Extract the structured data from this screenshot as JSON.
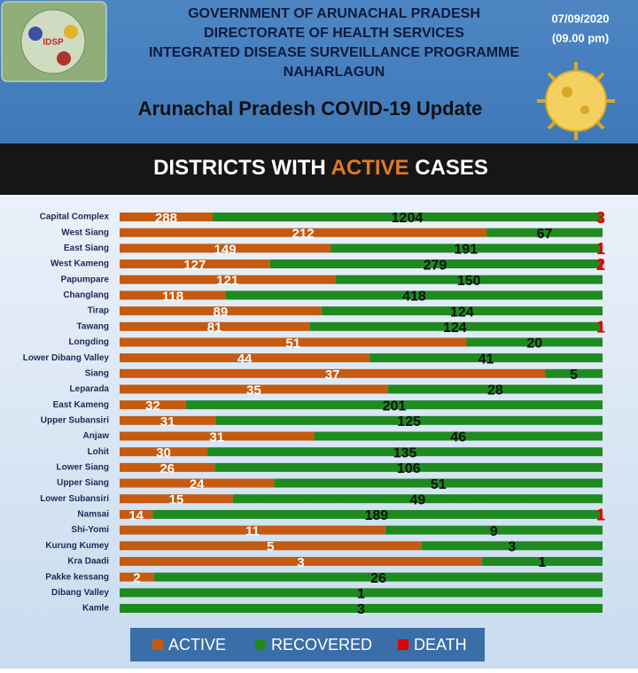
{
  "header": {
    "logo_text": "IDSP",
    "lines": [
      "GOVERNMENT OF ARUNACHAL PRADESH",
      "DIRECTORATE OF HEALTH SERVICES",
      "INTEGRATED DISEASE  SURVEILLANCE PROGRAMME",
      "NAHARLAGUN"
    ],
    "date": "07/09/2020",
    "time": "(09.00 pm)",
    "title": "Arunachal Pradesh COVID-19 Update"
  },
  "banner": {
    "parts": [
      "DISTRICTS WITH",
      "ACTIVE",
      "CASES"
    ]
  },
  "chart_data": {
    "type": "bar",
    "orientation": "horizontal",
    "stacked": true,
    "percent": true,
    "legend": "bottom",
    "categories": [
      "Capital Complex",
      "West Siang",
      "East Siang",
      "West Kameng",
      "Papumpare",
      "Changlang",
      "Tirap",
      "Tawang",
      "Longding",
      "Lower Dibang Valley",
      "Siang",
      "Leparada",
      "East Kameng",
      "Upper Subansiri",
      "Anjaw",
      "Lohit",
      "Lower Siang",
      "Upper Siang",
      "Lower Subansiri",
      "Namsai",
      "Shi-Yomi",
      "Kurung Kumey",
      "Kra Daadi",
      "Pakke kessang",
      "Dibang Valley",
      "Kamle"
    ],
    "series": [
      {
        "name": "ACTIVE",
        "color": "#c55a11",
        "values": [
          288,
          212,
          149,
          127,
          121,
          118,
          89,
          81,
          51,
          44,
          37,
          35,
          32,
          31,
          31,
          30,
          26,
          24,
          15,
          14,
          11,
          5,
          3,
          2,
          null,
          null
        ]
      },
      {
        "name": "RECOVERED",
        "color": "#1f8a1f",
        "values": [
          1204,
          67,
          191,
          279,
          150,
          418,
          124,
          124,
          20,
          41,
          5,
          28,
          201,
          125,
          46,
          135,
          106,
          51,
          49,
          189,
          9,
          3,
          1,
          26,
          1,
          3
        ]
      },
      {
        "name": "DEATH",
        "color": "#e00000",
        "values": [
          3,
          null,
          1,
          2,
          null,
          null,
          null,
          1,
          null,
          null,
          null,
          null,
          null,
          null,
          null,
          null,
          null,
          null,
          null,
          1,
          null,
          null,
          null,
          null,
          null,
          null
        ]
      }
    ]
  }
}
